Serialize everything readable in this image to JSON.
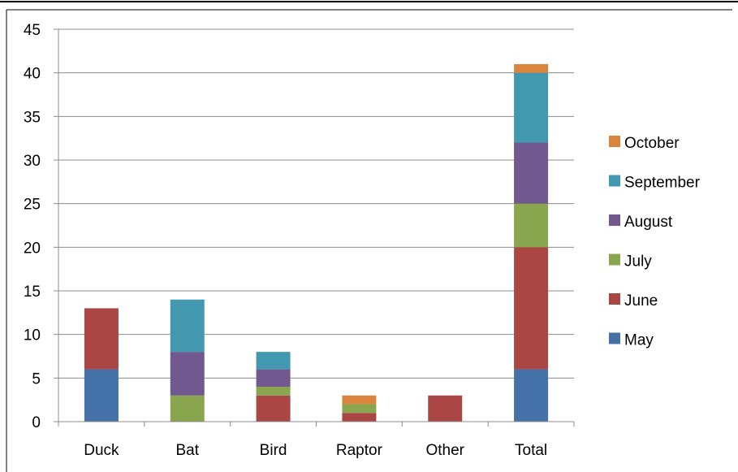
{
  "chart_data": {
    "type": "bar",
    "stacked": true,
    "categories": [
      "Duck",
      "Bat",
      "Bird",
      "Raptor",
      "Other",
      "Total"
    ],
    "series": [
      {
        "name": "May",
        "color": "#4472a8",
        "values": [
          6,
          0,
          0,
          0,
          0,
          6
        ]
      },
      {
        "name": "June",
        "color": "#aa4643",
        "values": [
          7,
          0,
          3,
          1,
          3,
          14
        ]
      },
      {
        "name": "July",
        "color": "#89a54e",
        "values": [
          0,
          3,
          1,
          1,
          0,
          5
        ]
      },
      {
        "name": "August",
        "color": "#71588f",
        "values": [
          0,
          5,
          2,
          0,
          0,
          7
        ]
      },
      {
        "name": "September",
        "color": "#4198af",
        "values": [
          0,
          6,
          2,
          0,
          0,
          8
        ]
      },
      {
        "name": "October",
        "color": "#db843d",
        "values": [
          0,
          0,
          0,
          1,
          0,
          1
        ]
      }
    ],
    "ylim": [
      0,
      45
    ],
    "yticks": [
      "0",
      "5",
      "10",
      "15",
      "20",
      "25",
      "30",
      "35",
      "40",
      "45"
    ],
    "grid": true,
    "legend_position": "right",
    "legend_order": [
      "October",
      "September",
      "August",
      "July",
      "June",
      "May"
    ],
    "title": "",
    "xlabel": "",
    "ylabel": ""
  }
}
